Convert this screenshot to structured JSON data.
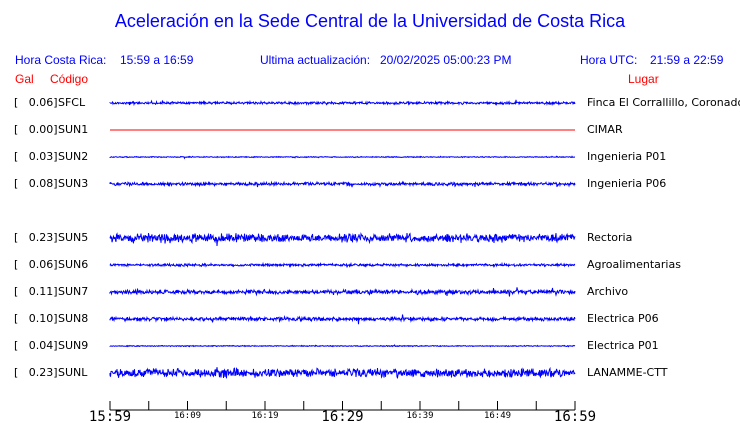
{
  "title": "Aceleración en la Sede Central de la Universidad de Costa Rica",
  "header": {
    "hora_cr_label": "Hora Costa Rica:",
    "hora_cr_value": "15:59 a 16:59",
    "update_label": "Ultima actualización:",
    "update_value": "20/02/2025 05:00:23 PM",
    "hora_utc_label": "Hora UTC:",
    "hora_utc_value": "21:59 a 22:59"
  },
  "columns": {
    "gal": "Gal",
    "codigo": "Código",
    "lugar": "Lugar"
  },
  "colors": {
    "trace": "#0000ff",
    "inactive_trace": "#ff0000",
    "header": "#0000ff",
    "column_header": "#ff0000"
  },
  "stations": [
    {
      "gal": "[   0.06]",
      "code": "SFCL",
      "place": "Finca El Corrallillo, Coronado",
      "active": true
    },
    {
      "gal": "[   0.00]",
      "code": "SUN1",
      "place": "CIMAR",
      "active": false
    },
    {
      "gal": "[   0.03]",
      "code": "SUN2",
      "place": "Ingenieria P01",
      "active": true
    },
    {
      "gal": "[   0.08]",
      "code": "SUN3",
      "place": "Ingenieria P06",
      "active": true
    },
    {
      "gal": "[   0.23]",
      "code": "SUN5",
      "place": "Rectoria",
      "active": true
    },
    {
      "gal": "[   0.06]",
      "code": "SUN6",
      "place": "Agroalimentarias",
      "active": true
    },
    {
      "gal": "[   0.11]",
      "code": "SUN7",
      "place": "Archivo",
      "active": true
    },
    {
      "gal": "[   0.10]",
      "code": "SUN8",
      "place": "Electrica P06",
      "active": true
    },
    {
      "gal": "[   0.04]",
      "code": "SUN9",
      "place": "Electrica P01",
      "active": true
    },
    {
      "gal": "[   0.23]",
      "code": "SUNL",
      "place": "LANAMME-CTT",
      "active": true
    }
  ],
  "time_axis": {
    "major_labels": [
      "15:59",
      "16:29",
      "16:59"
    ],
    "minor_labels": [
      "16:09",
      "16:19",
      "16:39",
      "16:49"
    ]
  }
}
